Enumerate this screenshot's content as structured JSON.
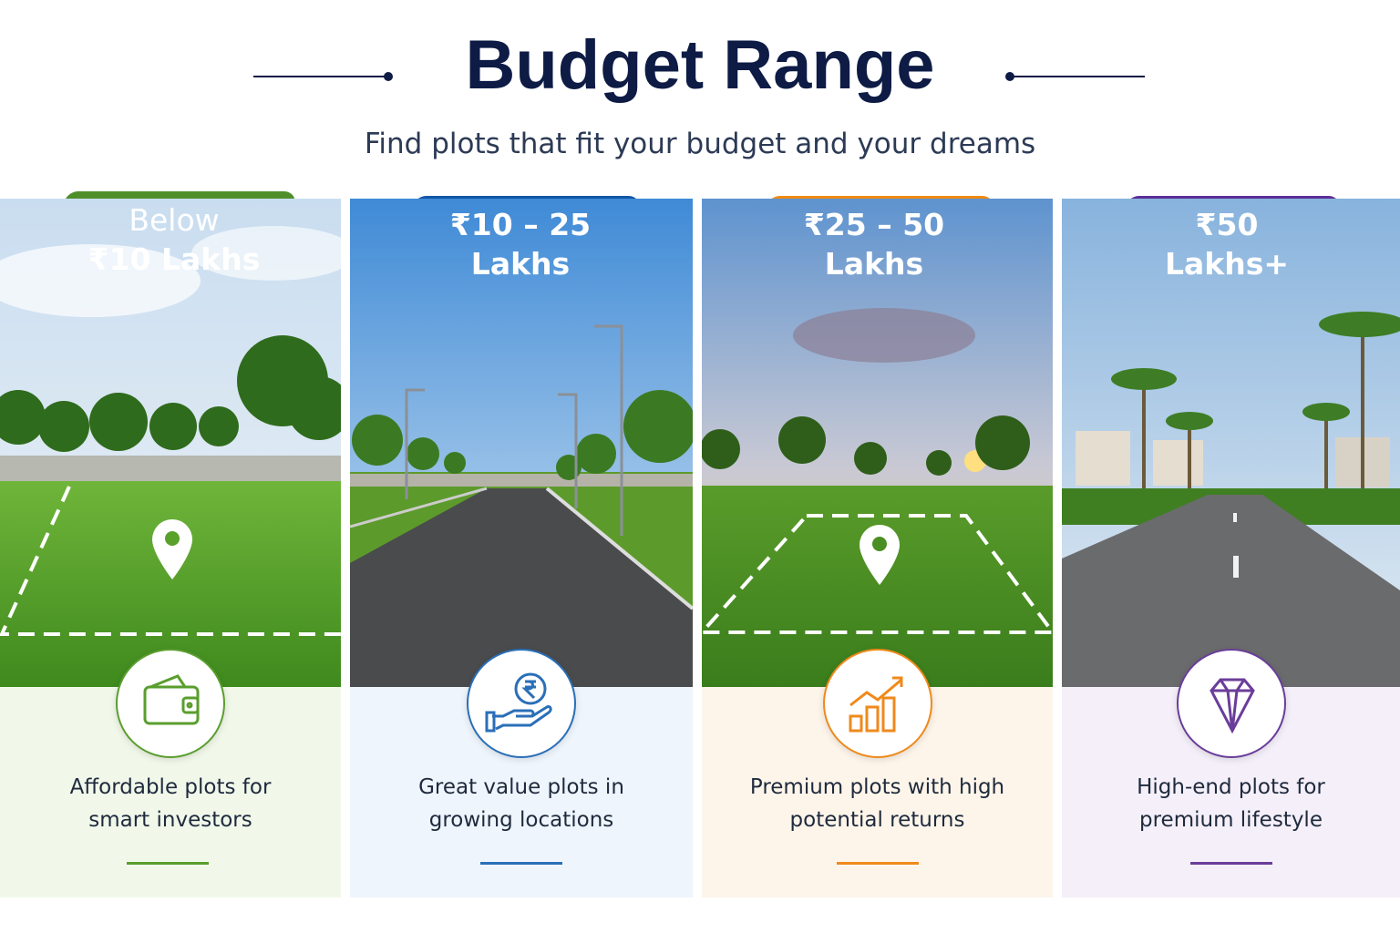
{
  "header": {
    "title": "Budget Range",
    "subtitle": "Find plots that fit your budget and your dreams"
  },
  "cards": [
    {
      "badge": [
        "Below",
        "₹10 Lakhs"
      ],
      "description": [
        "Affordable plots for",
        "smart investors"
      ]
    },
    {
      "badge": [
        "₹10 – 25",
        "Lakhs"
      ],
      "description": [
        "Great value plots in",
        "growing locations"
      ]
    },
    {
      "badge": [
        "₹25 – 50",
        "Lakhs"
      ],
      "description": [
        "Premium plots with high",
        "potential returns"
      ]
    },
    {
      "badge": [
        "₹50",
        "Lakhs+"
      ],
      "description": [
        "High-end plots for",
        "premium lifestyle"
      ]
    }
  ]
}
